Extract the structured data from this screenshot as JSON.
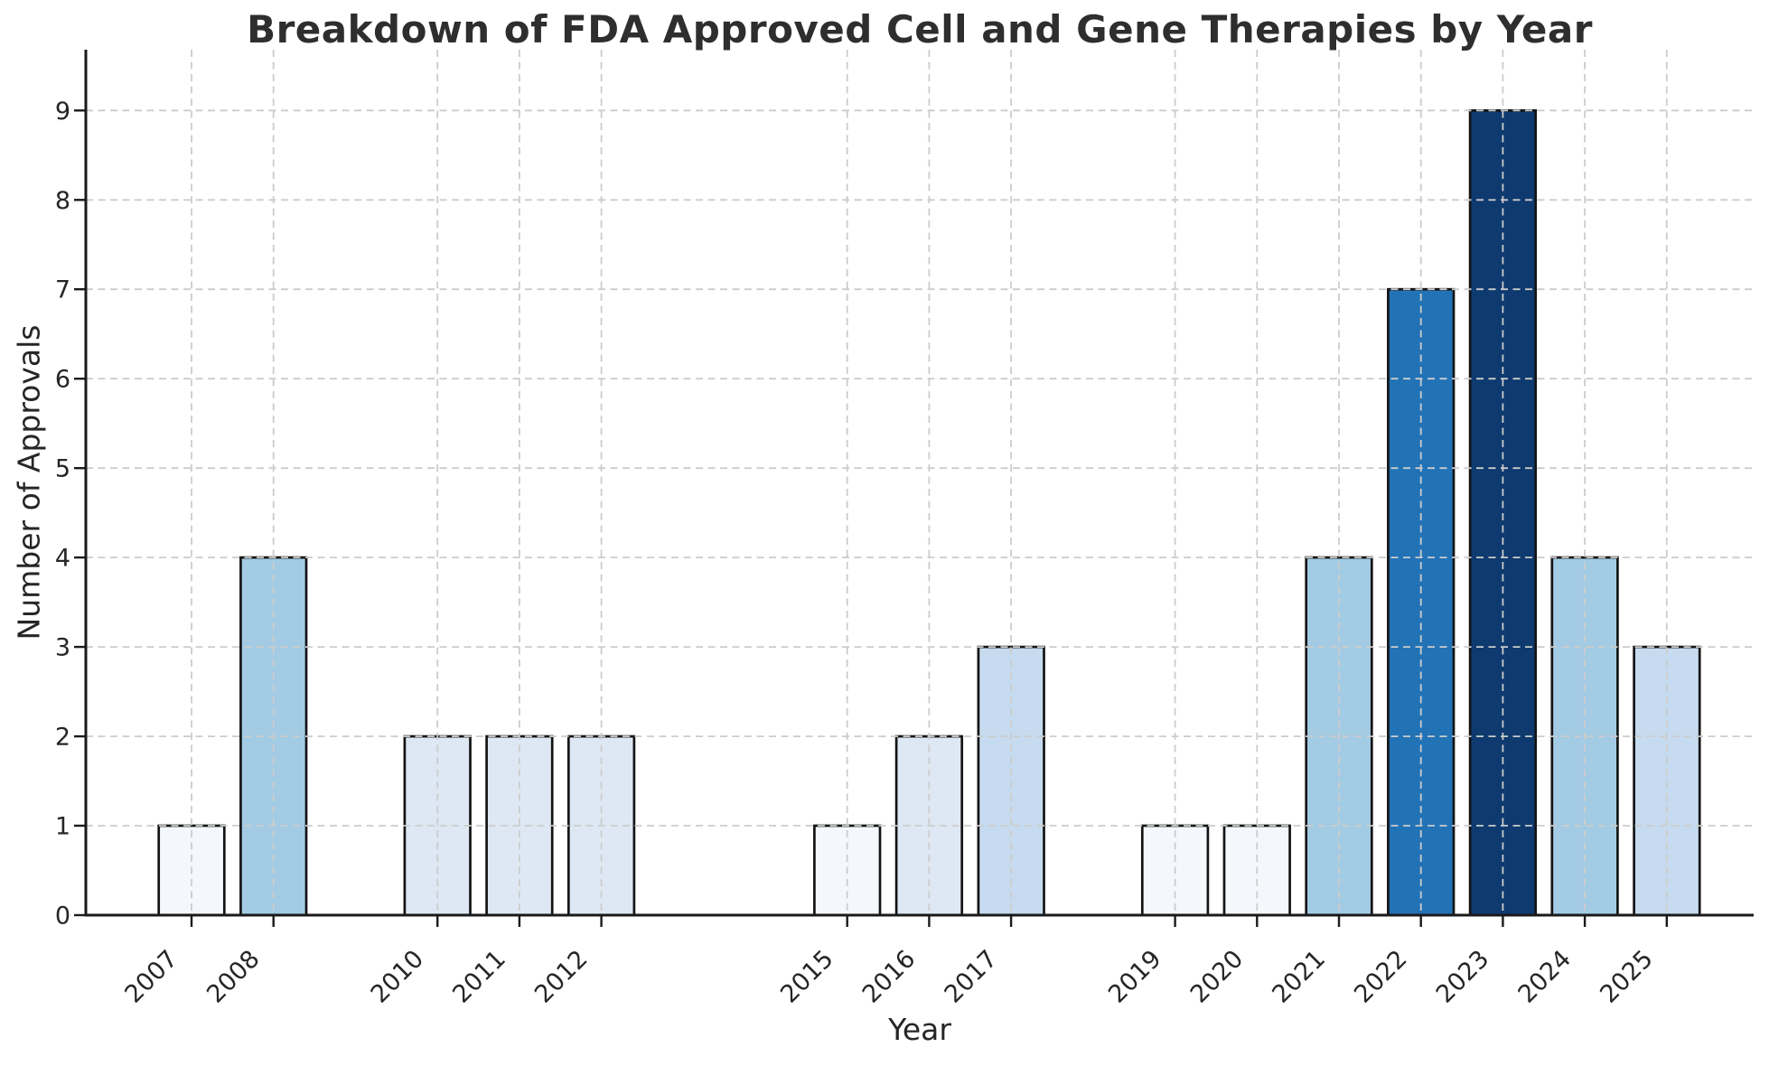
{
  "chart_data": {
    "type": "bar",
    "title": "Breakdown of FDA Approved Cell and Gene Therapies by Year",
    "xlabel": "Year",
    "ylabel": "Number of Approvals",
    "categories": [
      2007,
      2008,
      2010,
      2011,
      2012,
      2015,
      2016,
      2017,
      2019,
      2020,
      2021,
      2022,
      2023,
      2024,
      2025
    ],
    "values": [
      1,
      4,
      2,
      2,
      2,
      1,
      2,
      3,
      1,
      1,
      4,
      7,
      9,
      4,
      3
    ],
    "bar_colors": [
      "#f4f8fc",
      "#a3cbe4",
      "#dde8f4",
      "#dde8f4",
      "#dde8f4",
      "#f4f8fc",
      "#dde8f4",
      "#c6dbef",
      "#f4f8fc",
      "#f4f8fc",
      "#a3cbe4",
      "#2272b6",
      "#0e3a6f",
      "#a3cbe4",
      "#c6dbef"
    ],
    "value_color_scale": {
      "1": "#f4f8fc",
      "2": "#dde8f4",
      "3": "#c6dbef",
      "4": "#a3cbe4",
      "7": "#2272b6",
      "9": "#0e3a6f"
    },
    "bar_edge_color": "#141414",
    "bar_width_years": 0.8,
    "xlim": [
      2005.71,
      2026.06
    ],
    "ylim": [
      0,
      9.68
    ],
    "yticks": [
      0,
      1,
      2,
      3,
      4,
      5,
      6,
      7,
      8,
      9
    ],
    "xtick_rotation_deg": 45,
    "grid": {
      "visible": true,
      "style": "dashed",
      "color": "#cccccc",
      "on_top_of_bars": true
    },
    "legend": "none",
    "spines": [
      "left",
      "bottom"
    ],
    "spine_color": "#1a1a1a",
    "tick_label_color": "#262626",
    "axis_label_color": "#262626",
    "title_color": "#2e2e2e",
    "background_color": "#ffffff"
  }
}
